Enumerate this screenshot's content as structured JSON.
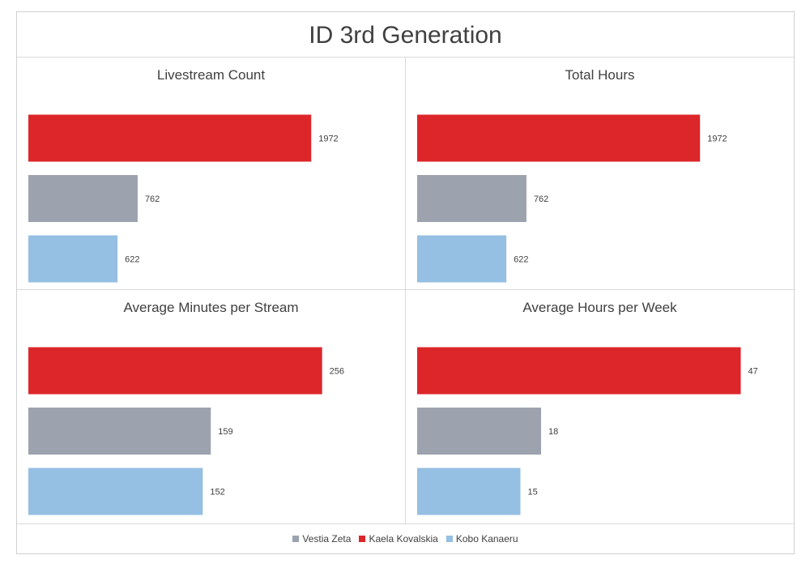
{
  "title": "ID 3rd Generation",
  "colors": {
    "Kaela Kovalskia": "#dc2629",
    "Vestia Zeta": "#9ca3ae",
    "Kobo Kanaeru": "#95bfe3"
  },
  "legend": [
    {
      "name": "Vestia Zeta",
      "color": "#9ca3ae"
    },
    {
      "name": "Kaela Kovalskia",
      "color": "#dc2629"
    },
    {
      "name": "Kobo Kanaeru",
      "color": "#95bfe3"
    }
  ],
  "chart_data": [
    {
      "type": "bar",
      "orientation": "horizontal",
      "title": "Livestream Count",
      "categories": [
        "Kaela Kovalskia",
        "Vestia Zeta",
        "Kobo Kanaeru"
      ],
      "values": [
        1972,
        762,
        622
      ],
      "xlim": [
        0,
        2400
      ],
      "grid": false
    },
    {
      "type": "bar",
      "orientation": "horizontal",
      "title": "Total Hours",
      "categories": [
        "Kaela Kovalskia",
        "Vestia Zeta",
        "Kobo Kanaeru"
      ],
      "values": [
        1972,
        762,
        622
      ],
      "xlim": [
        0,
        2400
      ],
      "grid": false
    },
    {
      "type": "bar",
      "orientation": "horizontal",
      "title": "Average Minutes per Stream",
      "categories": [
        "Kaela Kovalskia",
        "Vestia Zeta",
        "Kobo Kanaeru"
      ],
      "values": [
        256,
        159,
        152
      ],
      "xlim": [
        0,
        300
      ],
      "grid": false
    },
    {
      "type": "bar",
      "orientation": "horizontal",
      "title": "Average Hours per Week",
      "categories": [
        "Kaela Kovalskia",
        "Vestia Zeta",
        "Kobo Kanaeru"
      ],
      "values": [
        47,
        18,
        15
      ],
      "xlim": [
        0,
        50
      ],
      "grid": false
    }
  ]
}
